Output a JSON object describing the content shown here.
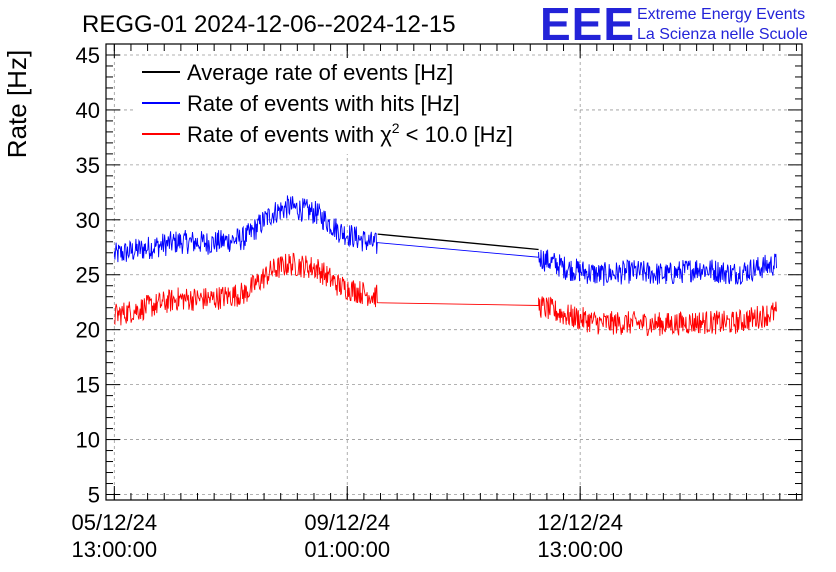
{
  "chart_data": {
    "type": "line",
    "title": "REGG-01 2024-12-06--2024-12-15",
    "ylabel": "Rate [Hz]",
    "xlabel": "",
    "ylim": [
      4.5,
      46
    ],
    "yticks": [
      5,
      10,
      15,
      20,
      25,
      30,
      35,
      40,
      45
    ],
    "xlim": [
      "2024-12-05 10:00:00",
      "2024-12-15 21:00:00"
    ],
    "xticks": [
      {
        "t": "2024-12-05 13:00:00",
        "label": [
          "05/12/24",
          "13:00:00"
        ]
      },
      {
        "t": "2024-12-09 01:00:00",
        "label": [
          "09/12/24",
          "01:00:00"
        ]
      },
      {
        "t": "2024-12-12 13:00:00",
        "label": [
          "12/12/24",
          "13:00:00"
        ]
      }
    ],
    "grid": true,
    "legend_position": "top-left",
    "series": [
      {
        "name": "Average rate of events [Hz]",
        "color": "#000000",
        "noise": 0,
        "x": [
          "2024-12-09 12:00:00",
          "2024-12-11 22:00:00"
        ],
        "y": [
          28.7,
          27.3
        ]
      },
      {
        "name": "Rate of events with hits [Hz]",
        "color": "#0000ff",
        "noise": 1.1,
        "x": [
          "2024-12-05 13:00:00",
          "2024-12-06 00:00:00",
          "2024-12-06 12:00:00",
          "2024-12-07 00:00:00",
          "2024-12-07 12:00:00",
          "2024-12-07 22:00:00",
          "2024-12-08 04:00:00",
          "2024-12-08 14:00:00",
          "2024-12-08 22:00:00",
          "2024-12-09 06:00:00",
          "2024-12-09 12:00:00",
          "2024-12-11 22:00:00",
          "2024-12-12 08:00:00",
          "2024-12-12 20:00:00",
          "2024-12-13 08:00:00",
          "2024-12-13 20:00:00",
          "2024-12-14 08:00:00",
          "2024-12-14 20:00:00",
          "2024-12-15 12:00:00"
        ],
        "y": [
          26.8,
          27.4,
          28.0,
          27.9,
          28.3,
          30.6,
          31.2,
          30.6,
          29.0,
          28.2,
          27.7,
          26.6,
          25.6,
          25.0,
          25.3,
          25.0,
          25.6,
          25.1,
          26.0
        ]
      },
      {
        "name": "Rate of events with χ2 < 10.0 [Hz]",
        "color": "#ff0000",
        "noise": 1.1,
        "x": [
          "2024-12-05 13:00:00",
          "2024-12-06 00:00:00",
          "2024-12-06 12:00:00",
          "2024-12-07 00:00:00",
          "2024-12-07 12:00:00",
          "2024-12-07 22:00:00",
          "2024-12-08 04:00:00",
          "2024-12-08 14:00:00",
          "2024-12-08 22:00:00",
          "2024-12-09 06:00:00",
          "2024-12-09 12:00:00",
          "2024-12-11 22:00:00",
          "2024-12-12 08:00:00",
          "2024-12-12 20:00:00",
          "2024-12-13 08:00:00",
          "2024-12-13 20:00:00",
          "2024-12-14 08:00:00",
          "2024-12-14 20:00:00",
          "2024-12-15 12:00:00"
        ],
        "y": [
          21.3,
          22.0,
          22.8,
          22.8,
          23.3,
          25.4,
          26.0,
          25.6,
          24.0,
          23.4,
          23.0,
          22.2,
          21.3,
          20.6,
          20.6,
          20.5,
          20.7,
          20.6,
          21.6
        ]
      }
    ]
  },
  "legend": {
    "avg": "Average rate of events [Hz]",
    "hits": "Rate of events with hits [Hz]",
    "chi_prefix": "Rate of events with χ",
    "chi_sup": "2",
    "chi_suffix": " < 10.0 [Hz]"
  },
  "branding": {
    "logo": "EEE",
    "line1": "Extreme Energy Events",
    "line2": "La Scienza nelle Scuole",
    "color": "#2323d8"
  }
}
